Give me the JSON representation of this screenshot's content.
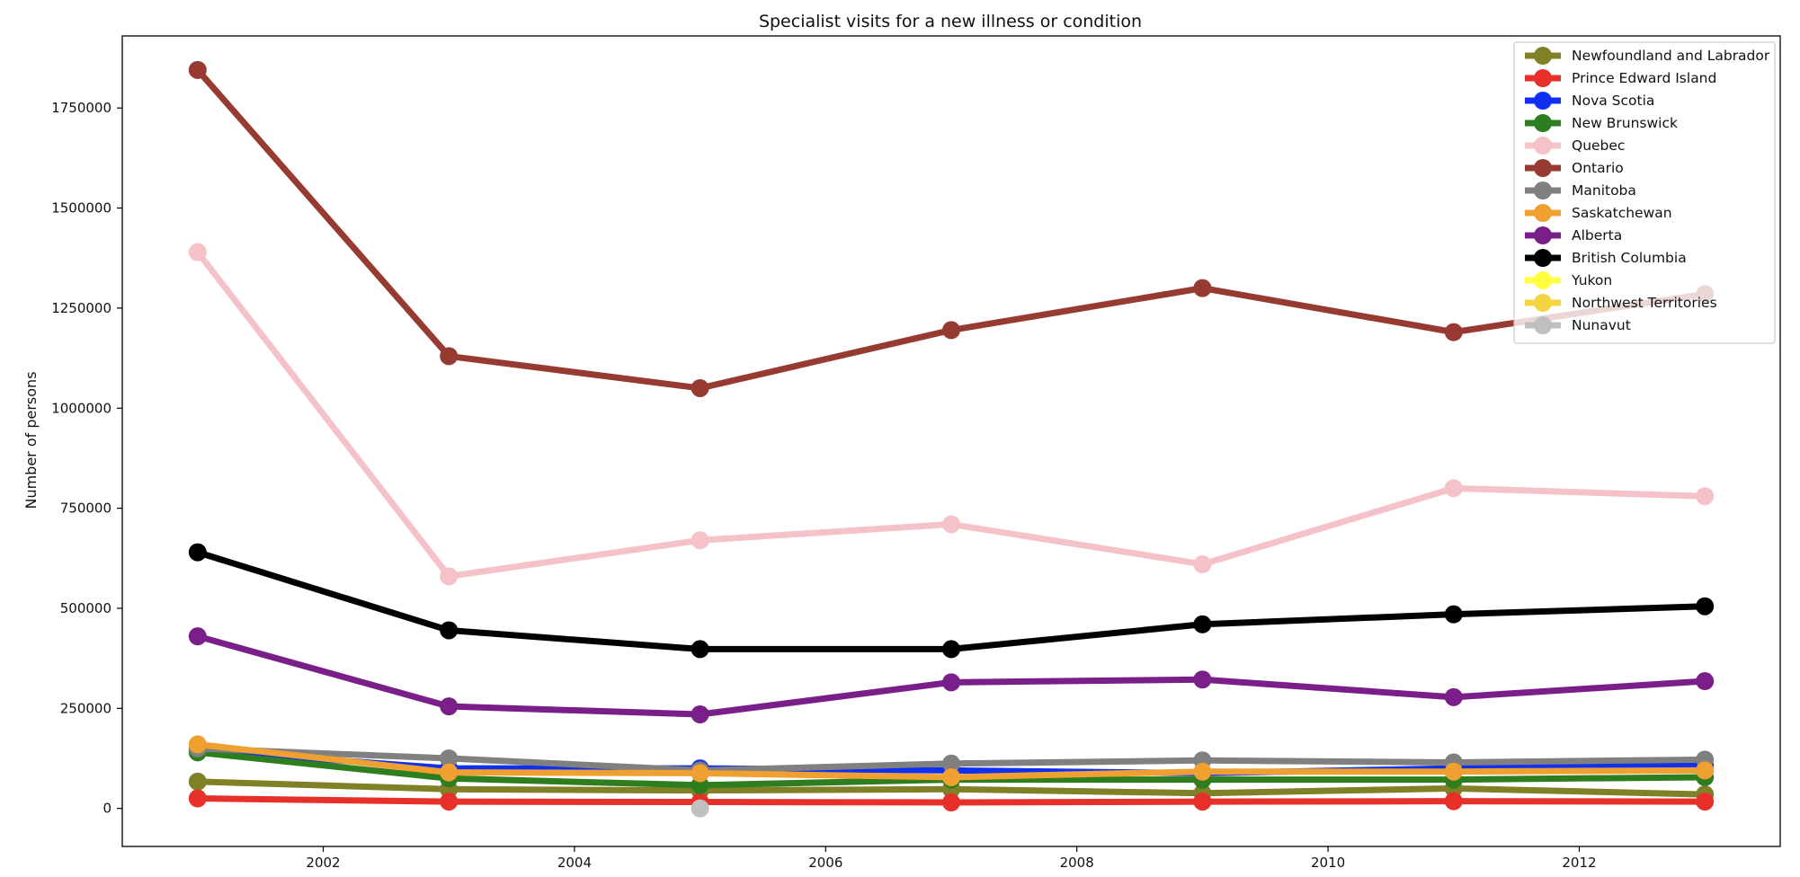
{
  "chart_data": {
    "type": "line",
    "title": "Specialist visits for a new illness or condition",
    "xlabel": "",
    "ylabel": "Number of persons",
    "xlim": [
      2000.4,
      2013.6
    ],
    "ylim": [
      -95000,
      1930000
    ],
    "x_ticks": [
      2002,
      2004,
      2006,
      2008,
      2010,
      2012
    ],
    "y_ticks": [
      0,
      250000,
      500000,
      750000,
      1000000,
      1250000,
      1500000,
      1750000
    ],
    "grid": false,
    "legend_position": "top-right",
    "x": [
      2001,
      2003,
      2005,
      2007,
      2009,
      2011,
      2013
    ],
    "series": [
      {
        "name": "Newfoundland and Labrador",
        "color": "#808026",
        "values": [
          67000,
          48000,
          45000,
          48000,
          38000,
          50000,
          35000
        ]
      },
      {
        "name": "Prince Edward Island",
        "color": "#e8302a",
        "values": [
          25000,
          17000,
          16000,
          15000,
          17000,
          18000,
          17000
        ]
      },
      {
        "name": "Nova Scotia",
        "color": "#1030f0",
        "values": [
          145000,
          100000,
          100000,
          95000,
          88000,
          100000,
          108000
        ]
      },
      {
        "name": "New Brunswick",
        "color": "#2e7d1f",
        "values": [
          140000,
          75000,
          58000,
          72000,
          72000,
          72000,
          78000
        ]
      },
      {
        "name": "Quebec",
        "color": "#f4c2c8",
        "values": [
          1390000,
          580000,
          670000,
          710000,
          610000,
          800000,
          780000
        ]
      },
      {
        "name": "Ontario",
        "color": "#963a32",
        "values": [
          1845000,
          1130000,
          1050000,
          1195000,
          1300000,
          1190000,
          1285000
        ]
      },
      {
        "name": "Manitoba",
        "color": "#808080",
        "values": [
          150000,
          125000,
          95000,
          112000,
          120000,
          115000,
          122000
        ]
      },
      {
        "name": "Saskatchewan",
        "color": "#f0a030",
        "values": [
          160000,
          90000,
          88000,
          78000,
          92000,
          92000,
          95000
        ]
      },
      {
        "name": "Alberta",
        "color": "#7a1e8a",
        "values": [
          430000,
          255000,
          235000,
          315000,
          322000,
          278000,
          318000
        ]
      },
      {
        "name": "British Columbia",
        "color": "#000000",
        "values": [
          640000,
          445000,
          398000,
          398000,
          460000,
          485000,
          505000
        ]
      },
      {
        "name": "Yukon",
        "color": "#ffff40",
        "values": [
          null,
          null,
          null,
          null,
          null,
          null,
          null
        ]
      },
      {
        "name": "Northwest Territories",
        "color": "#f5d442",
        "values": [
          null,
          null,
          null,
          null,
          null,
          null,
          null
        ]
      },
      {
        "name": "Nunavut",
        "color": "#c0c0c0",
        "values": [
          null,
          null,
          0,
          null,
          null,
          null,
          null
        ]
      }
    ]
  }
}
